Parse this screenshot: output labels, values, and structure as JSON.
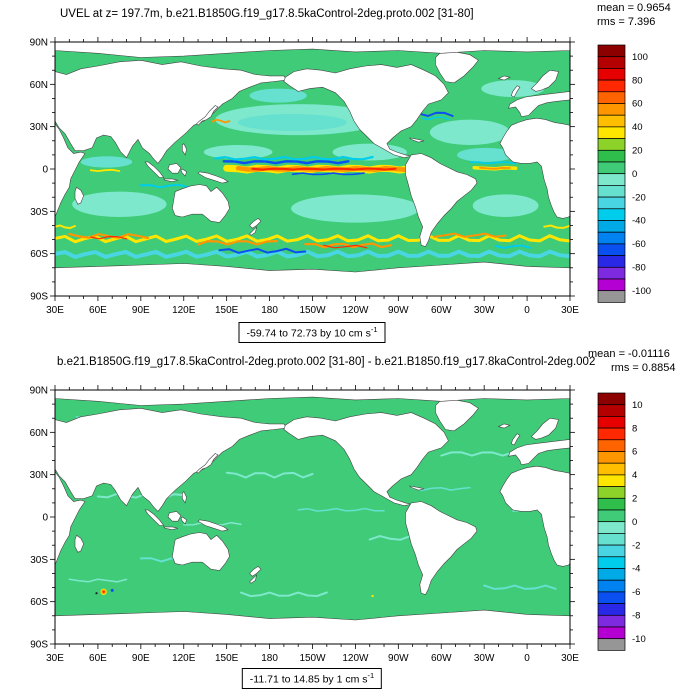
{
  "figure": {
    "background": "#ffffff",
    "ocean_base_color": "#3fcb78",
    "land_color": "#ffffff",
    "coastline_color": "#444444"
  },
  "panel_top": {
    "title": "UVEL at z= 197.7m, b.e21.B1850G.f19_g17.8.5kaControl-2deg.proto.002 [31-80]",
    "mean_text": "mean = 0.9654",
    "rms_text": "rms = 7.396",
    "range_text": "-59.74 to 72.73 by 10 cm s",
    "range_sup": "-1"
  },
  "panel_bottom": {
    "title": "b.e21.B1850G.f19_g17.8.5kaControl-2deg.proto.002 [31-80] - b.e21.B1850.f19_g17.8kaControl-2deg.002",
    "mean_text": "mean = -0.01116",
    "rms_text": "rms = 0.8854",
    "range_text": "-11.71 to 14.85 by 1 cm s",
    "range_sup": "-1"
  },
  "axes": {
    "lon_labels": [
      "30E",
      "60E",
      "90E",
      "120E",
      "150E",
      "180",
      "150W",
      "120W",
      "90W",
      "60W",
      "30W",
      "0",
      "30E"
    ],
    "lat_labels": [
      "90N",
      "60N",
      "30N",
      "0",
      "30S",
      "60S",
      "90S"
    ]
  },
  "colorbars": {
    "palette_low_to_high": [
      "#969696",
      "#b400d2",
      "#7d2ae0",
      "#2828e6",
      "#0a50f0",
      "#0082f0",
      "#00aae6",
      "#00cdeb",
      "#49d6e2",
      "#66e0cf",
      "#7de8cc",
      "#3fcb78",
      "#2fbe4b",
      "#8cd228",
      "#ffe600",
      "#ffbe00",
      "#ff9600",
      "#ff6400",
      "#ff2800",
      "#e60000",
      "#b40000",
      "#8c0000"
    ],
    "top_labels": [
      "100",
      "80",
      "60",
      "40",
      "20",
      "0",
      "-20",
      "-40",
      "-60",
      "-80",
      "-100"
    ],
    "bottom_labels": [
      "10",
      "8",
      "6",
      "4",
      "2",
      "0",
      "-2",
      "-4",
      "-6",
      "-8",
      "-10"
    ]
  },
  "chart_data": [
    {
      "type": "heatmap",
      "subtype": "filled_contour_world_map",
      "variable": "UVEL",
      "depth": "z= 197.7m",
      "units": "cm s-1",
      "title": "UVEL at z= 197.7m, b.e21.B1850G.f19_g17.8.5kaControl-2deg.proto.002 [31-80]",
      "stats": {
        "mean": 0.9654,
        "rms": 7.396
      },
      "data_range": {
        "min": -59.74,
        "max": 72.73,
        "contour_interval": 10
      },
      "levels": [
        -100,
        -90,
        -80,
        -70,
        -60,
        -50,
        -40,
        -30,
        -20,
        -10,
        0,
        10,
        20,
        30,
        40,
        50,
        60,
        70,
        80,
        90,
        100
      ],
      "colorbar_labeled_levels": [
        100,
        80,
        60,
        40,
        20,
        0,
        -20,
        -40,
        -60,
        -80,
        -100
      ],
      "palette": "NCL rainbow (violet-blue-cyan-green-yellow-orange-red), gray box below minimum",
      "x_axis": {
        "tick_labels": [
          "30E",
          "60E",
          "90E",
          "120E",
          "150E",
          "180",
          "150W",
          "120W",
          "90W",
          "60W",
          "30W",
          "0",
          "30E"
        ],
        "start_deg_east": 30,
        "end_deg_east": 390,
        "major_tick_deg": 30,
        "minor_tick_deg": 10
      },
      "y_axis": {
        "tick_labels": [
          "90N",
          "60N",
          "30N",
          "0",
          "30S",
          "60S",
          "90S"
        ],
        "min_lat": -90,
        "max_lat": 90,
        "major_tick_deg": 30,
        "minor_tick_deg": 10
      },
      "notable_features": [
        "Most open ocean between -10 and +10 cm/s (green and pale cyan fills)",
        "Strong eastward equatorial Pacific jet (red/orange/yellow streak, ~40-70 cm/s)",
        "Westward/blue streaks flanking the equatorial Pacific jet",
        "Antarctic Circumpolar Current band near 45-55S with yellow/orange/red streaks",
        "Land masked white with thin coastlines; white bands at polar edges"
      ]
    },
    {
      "type": "heatmap",
      "subtype": "filled_contour_world_map_difference",
      "variable": "UVEL difference",
      "units": "cm s-1",
      "title": "b.e21.B1850G.f19_g17.8.5kaControl-2deg.proto.002 [31-80] - b.e21.B1850.f19_g17.8kaControl-2deg.002",
      "stats": {
        "mean": -0.01116,
        "rms": 0.8854
      },
      "data_range": {
        "min": -11.71,
        "max": 14.85,
        "contour_interval": 1
      },
      "levels": [
        -10,
        -9,
        -8,
        -7,
        -6,
        -5,
        -4,
        -3,
        -2,
        -1,
        0,
        1,
        2,
        3,
        4,
        5,
        6,
        7,
        8,
        9,
        10
      ],
      "colorbar_labeled_levels": [
        10,
        8,
        6,
        4,
        2,
        0,
        -2,
        -4,
        -6,
        -8,
        -10
      ],
      "palette": "NCL rainbow (violet-blue-cyan-green-yellow-orange-red), gray box below minimum",
      "x_axis": {
        "tick_labels": [
          "30E",
          "60E",
          "90E",
          "120E",
          "150E",
          "180",
          "150W",
          "120W",
          "90W",
          "60W",
          "30W",
          "0",
          "30E"
        ],
        "start_deg_east": 30,
        "end_deg_east": 390,
        "major_tick_deg": 30,
        "minor_tick_deg": 10
      },
      "y_axis": {
        "tick_labels": [
          "90N",
          "60N",
          "30N",
          "0",
          "30S",
          "60S",
          "90S"
        ],
        "min_lat": -90,
        "max_lat": 90,
        "major_tick_deg": 30,
        "minor_tick_deg": 10
      },
      "notable_features": [
        "Difference field nearly uniform within ±1 cm/s (green with faint cyan streaks)",
        "Small localized multicolor anomaly spot near 65E, 53S",
        "Titles of the two compared cases overlap the rms text at top right"
      ]
    }
  ]
}
